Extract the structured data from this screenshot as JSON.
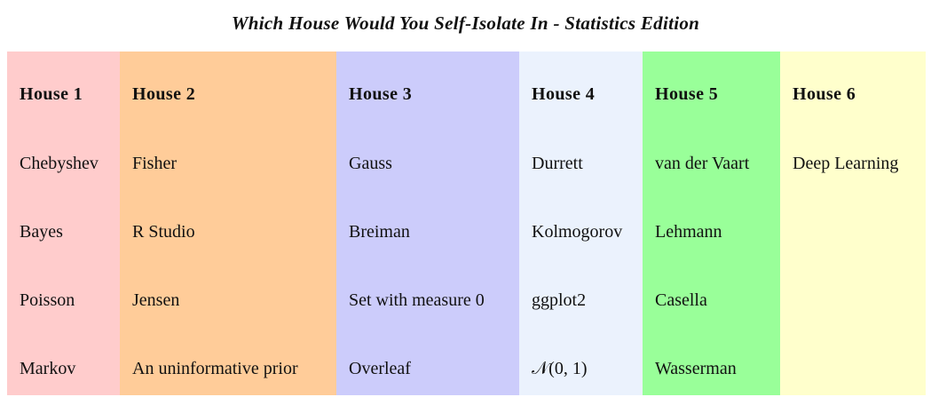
{
  "title": "Which House Would You Self-Isolate In - Statistics Edition",
  "houses": [
    {
      "header": "House 1",
      "color": "#ffcccc",
      "items": [
        "Chebyshev",
        "Bayes",
        "Poisson",
        "Markov"
      ]
    },
    {
      "header": "House 2",
      "color": "#ffcc99",
      "items": [
        "Fisher",
        "R Studio",
        "Jensen",
        "An uninformative prior"
      ]
    },
    {
      "header": "House 3",
      "color": "#ccccfb",
      "items": [
        "Gauss",
        "Breiman",
        "Set with measure 0",
        "Overleaf"
      ]
    },
    {
      "header": "House 4",
      "color": "#ebf2fd",
      "items": [
        "Durrett",
        "Kolmogorov",
        "ggplot2",
        "𝒩(0, 1)"
      ]
    },
    {
      "header": "House 5",
      "color": "#99ff99",
      "items": [
        "van der Vaart",
        "Lehmann",
        "Casella",
        "Wasserman"
      ]
    },
    {
      "header": "House 6",
      "color": "#ffffcc",
      "items": [
        "Deep Learning",
        "",
        "",
        ""
      ]
    }
  ]
}
